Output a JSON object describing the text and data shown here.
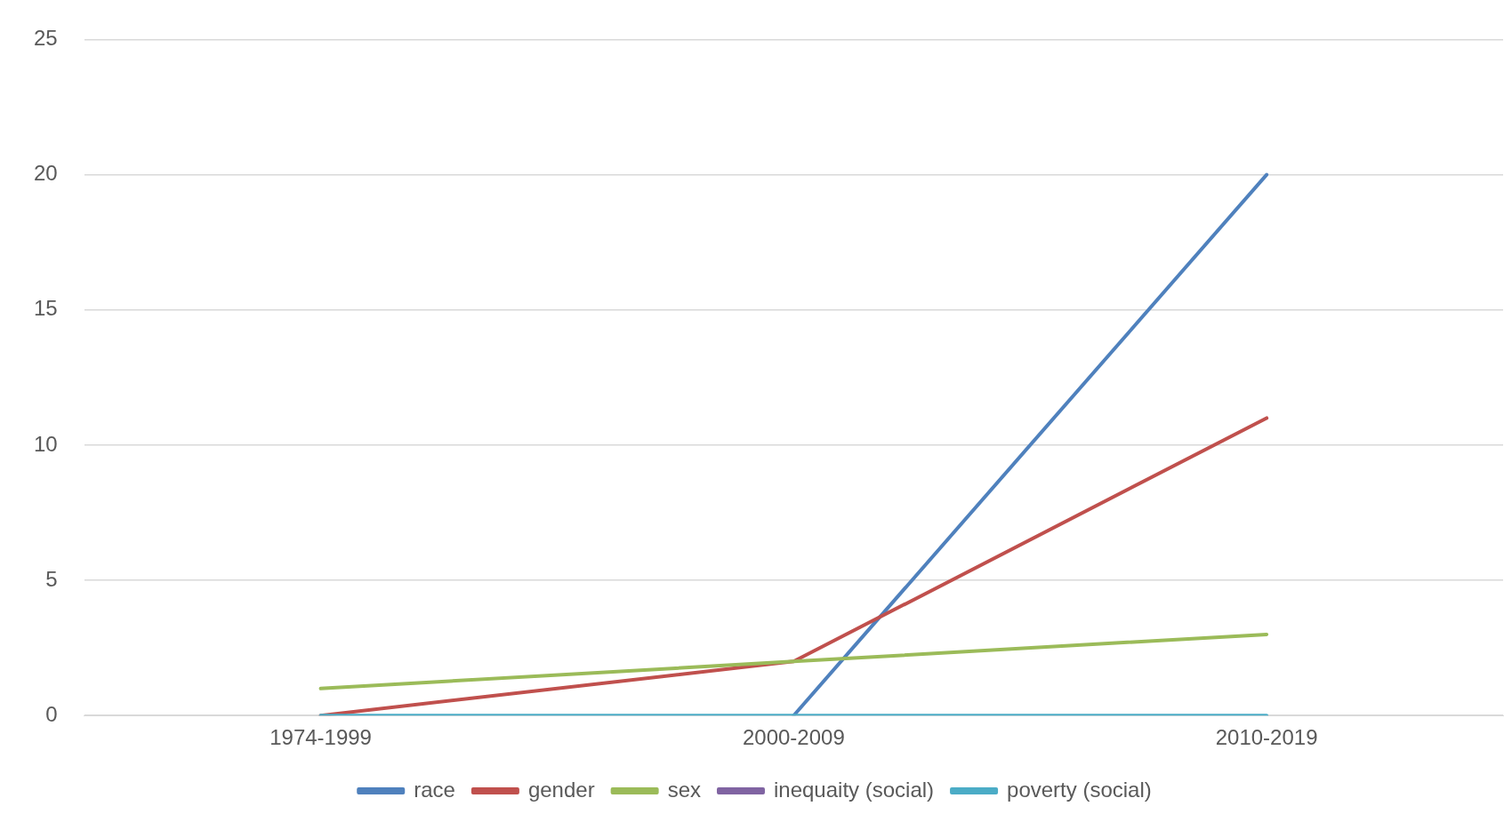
{
  "chart_data": {
    "type": "line",
    "categories": [
      "1974-1999",
      "2000-2009",
      "2010-2019"
    ],
    "series": [
      {
        "name": "race",
        "color": "#4f81bd",
        "values": [
          null,
          0,
          20
        ]
      },
      {
        "name": "gender",
        "color": "#c0504d",
        "values": [
          0,
          2,
          11
        ]
      },
      {
        "name": "sex",
        "color": "#9bbb59",
        "values": [
          1,
          2,
          3
        ]
      },
      {
        "name": "inequaity (social)",
        "color": "#8064a2",
        "values": [
          null,
          null,
          null
        ]
      },
      {
        "name": "poverty (social)",
        "color": "#4bacc6",
        "values": [
          0,
          0,
          0
        ]
      }
    ],
    "ylim": [
      0,
      25
    ],
    "yticks": [
      0,
      5,
      10,
      15,
      20,
      25
    ],
    "grid": "y",
    "legend": "bottom",
    "marker": "none",
    "line_style": "solid"
  }
}
